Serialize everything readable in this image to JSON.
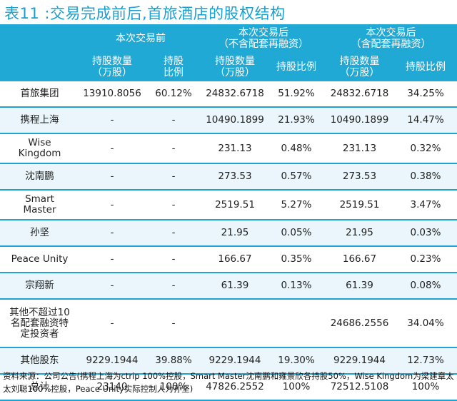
{
  "title": "表11 :交易完成前后,首旅酒店的股权结构",
  "groups": [
    "本次交易前",
    "本次交易后\n（不含配套再融资）",
    "本次交易后\n（含配套再融资）"
  ],
  "subheaders": [
    "持股数量\n（万股）",
    "持股\n比例",
    "持股数量\n（万股）",
    "持股比例",
    "持股数量\n（万股）",
    "持股比例"
  ],
  "rows": [
    {
      "name": "首旅集团",
      "v": [
        "13910.8056",
        "60.12%",
        "24832.6718",
        "51.92%",
        "24832.6718",
        "34.25%"
      ]
    },
    {
      "name": "携程上海",
      "v": [
        "-",
        "-",
        "10490.1899",
        "21.93%",
        "10490.1899",
        "14.47%"
      ]
    },
    {
      "name": "Wise\nKingdom",
      "v": [
        "-",
        "-",
        "231.13",
        "0.48%",
        "231.13",
        "0.32%"
      ]
    },
    {
      "name": "沈南鹏",
      "v": [
        "-",
        "-",
        "273.53",
        "0.57%",
        "273.53",
        "0.38%"
      ]
    },
    {
      "name": "Smart\nMaster",
      "v": [
        "-",
        "-",
        "2519.51",
        "5.27%",
        "2519.51",
        "3.47%"
      ]
    },
    {
      "name": "孙坚",
      "v": [
        "-",
        "-",
        "21.95",
        "0.05%",
        "21.95",
        "0.03%"
      ]
    },
    {
      "name": "Peace Unity",
      "v": [
        "-",
        "-",
        "166.67",
        "0.35%",
        "166.67",
        "0.23%"
      ]
    },
    {
      "name": "宗翔新",
      "v": [
        "-",
        "-",
        "61.39",
        "0.13%",
        "61.39",
        "0.08%"
      ]
    },
    {
      "name": "其他不超过10\n名配套融资特\n定投资者",
      "v": [
        "-",
        "-",
        "",
        "",
        "24686.2556",
        "34.04%"
      ]
    },
    {
      "name": "其他股东",
      "v": [
        "9229.1944",
        "39.88%",
        "9229.1944",
        "19.30%",
        "9229.1944",
        "12.73%"
      ]
    },
    {
      "name": "总计",
      "v": [
        "23140",
        "100%",
        "47826.2552",
        "100%",
        "72512.5108",
        "100%"
      ]
    }
  ],
  "footnote": "资料来源：公司公告(携程上海为ctrip 100%控股，Smart Master沈南鹏和雍景欣各持股50%，Wise Kingdom为梁建章太太刘聪100%控股，Peace Unity实际控制人为孙坚)"
}
